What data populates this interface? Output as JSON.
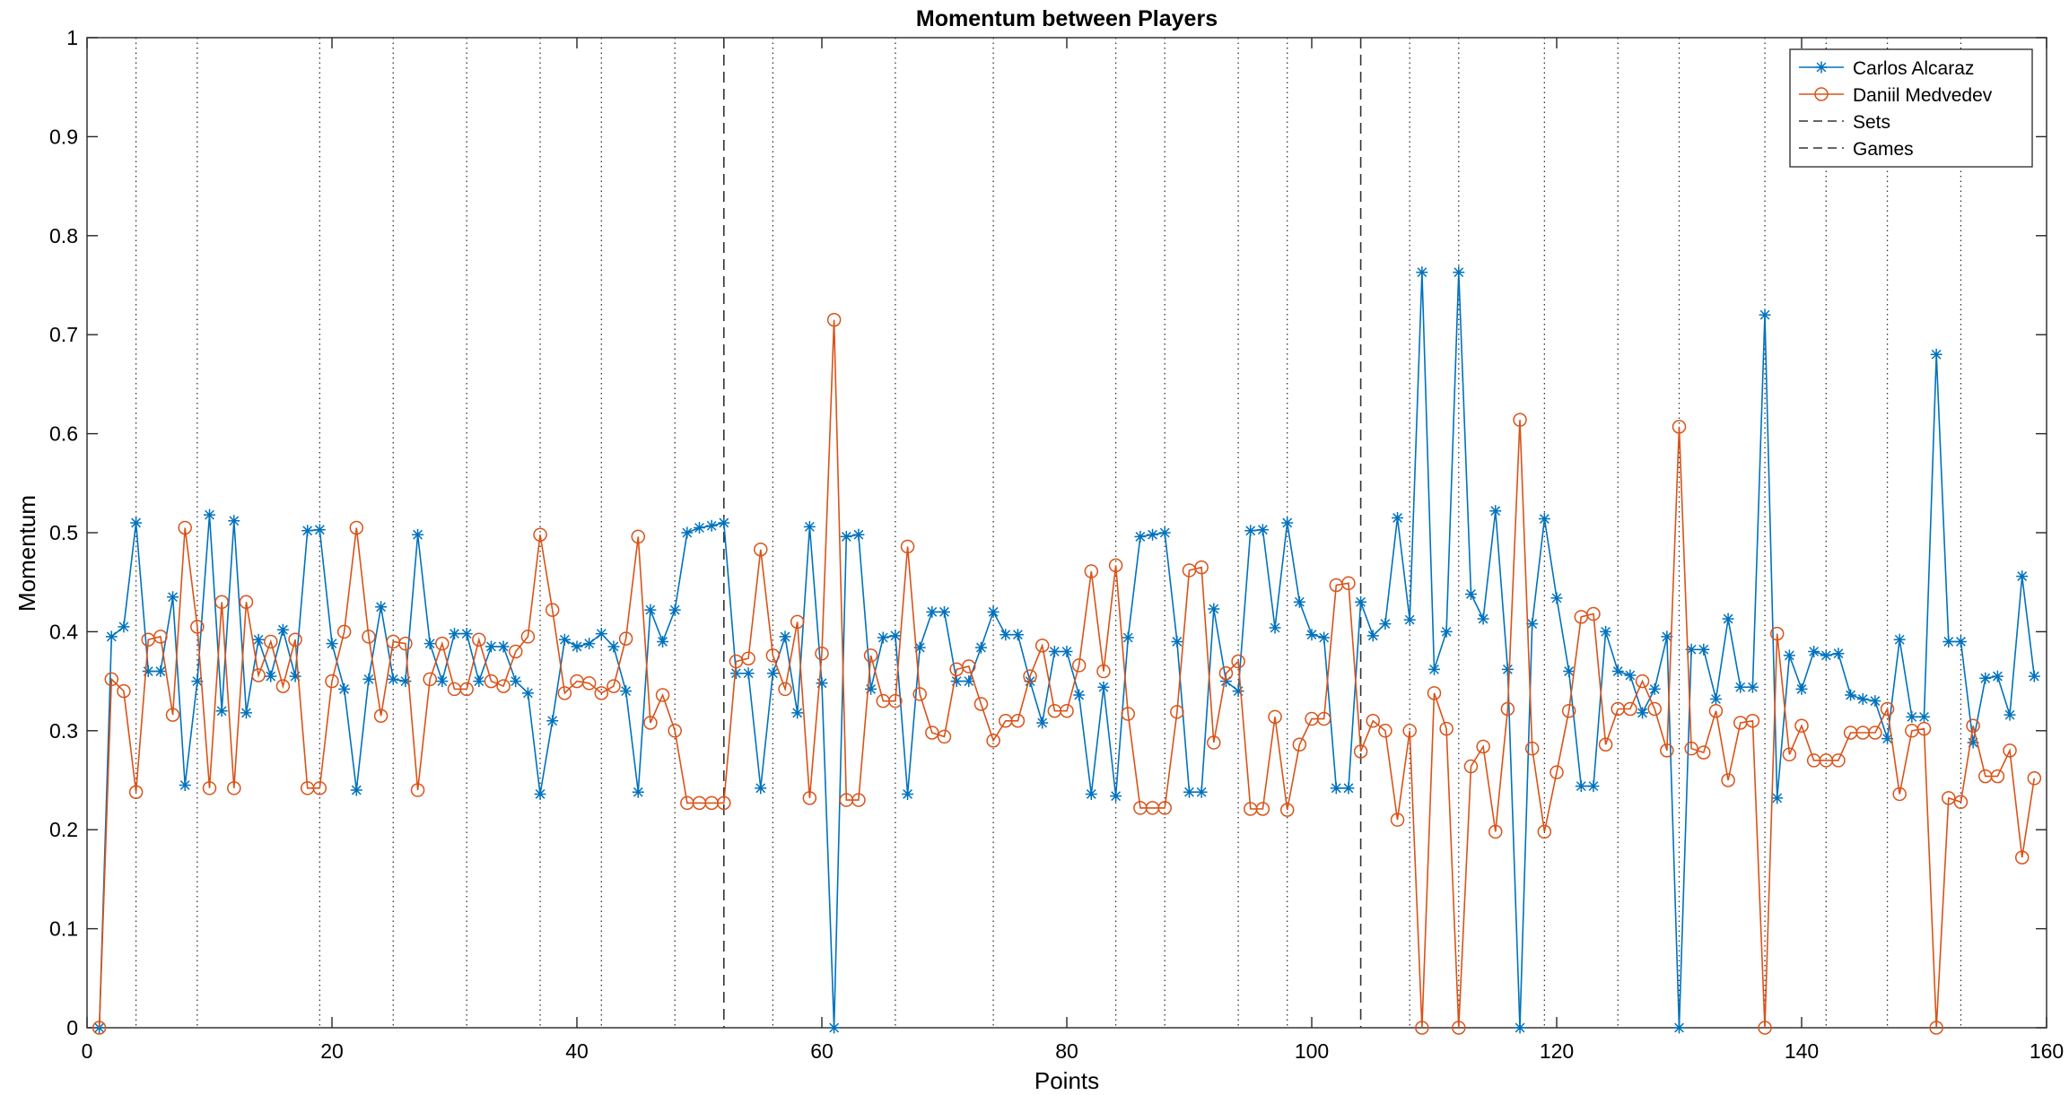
{
  "chart_data": {
    "type": "line",
    "title": "Momentum between Players",
    "xlabel": "Points",
    "ylabel": "Momentum",
    "xlim": [
      0,
      160
    ],
    "ylim": [
      0,
      1
    ],
    "xticks": [
      "0",
      "20",
      "40",
      "60",
      "80",
      "100",
      "120",
      "140",
      "160"
    ],
    "yticks": [
      "0",
      "0.1",
      "0.2",
      "0.3",
      "0.4",
      "0.5",
      "0.6",
      "0.7",
      "0.8",
      "0.9",
      "1"
    ],
    "grid": false,
    "legend_position": "top-right",
    "legend": [
      "Carlos Alcaraz",
      "Daniil Medvedev",
      "Sets",
      "Games"
    ],
    "set_boundaries": [
      52,
      104
    ],
    "game_boundaries": [
      4,
      9,
      19,
      25,
      31,
      37,
      42,
      48,
      56,
      66,
      74,
      84,
      88,
      94,
      98,
      108,
      112,
      119,
      125,
      130,
      137,
      142,
      147,
      153
    ],
    "x": [
      1,
      2,
      3,
      4,
      5,
      6,
      7,
      8,
      9,
      10,
      11,
      12,
      13,
      14,
      15,
      16,
      17,
      18,
      19,
      20,
      21,
      22,
      23,
      24,
      25,
      26,
      27,
      28,
      29,
      30,
      31,
      32,
      33,
      34,
      35,
      36,
      37,
      38,
      39,
      40,
      41,
      42,
      43,
      44,
      45,
      46,
      47,
      48,
      49,
      50,
      51,
      52,
      53,
      54,
      55,
      56,
      57,
      58,
      59,
      60,
      61,
      62,
      63,
      64,
      65,
      66,
      67,
      68,
      69,
      70,
      71,
      72,
      73,
      74,
      75,
      76,
      77,
      78,
      79,
      80,
      81,
      82,
      83,
      84,
      85,
      86,
      87,
      88,
      89,
      90,
      91,
      92,
      93,
      94,
      95,
      96,
      97,
      98,
      99,
      100,
      101,
      102,
      103,
      104,
      105,
      106,
      107,
      108,
      109,
      110,
      111,
      112,
      113,
      114,
      115,
      116,
      117,
      118,
      119,
      120,
      121,
      122,
      123,
      124,
      125,
      126,
      127,
      128,
      129,
      130,
      131,
      132,
      133,
      134,
      135,
      136,
      137,
      138,
      139,
      140,
      141,
      142,
      143,
      144,
      145,
      146,
      147,
      148,
      149,
      150,
      151,
      152,
      153,
      154,
      155,
      156,
      157,
      158,
      159
    ],
    "series": [
      {
        "name": "Carlos Alcaraz",
        "color": "#0072BD",
        "marker": "asterisk",
        "values": [
          0.0,
          0.395,
          0.405,
          0.51,
          0.36,
          0.36,
          0.435,
          0.245,
          0.35,
          0.518,
          0.32,
          0.512,
          0.318,
          0.392,
          0.355,
          0.402,
          0.355,
          0.502,
          0.503,
          0.388,
          0.342,
          0.24,
          0.352,
          0.425,
          0.352,
          0.35,
          0.498,
          0.388,
          0.35,
          0.398,
          0.398,
          0.35,
          0.385,
          0.385,
          0.35,
          0.338,
          0.236,
          0.31,
          0.392,
          0.385,
          0.388,
          0.398,
          0.385,
          0.34,
          0.238,
          0.422,
          0.39,
          0.422,
          0.5,
          0.505,
          0.507,
          0.51,
          0.358,
          0.358,
          0.242,
          0.358,
          0.395,
          0.318,
          0.506,
          0.348,
          0.0,
          0.496,
          0.498,
          0.342,
          0.394,
          0.396,
          0.236,
          0.384,
          0.42,
          0.42,
          0.35,
          0.35,
          0.384,
          0.42,
          0.397,
          0.397,
          0.35,
          0.308,
          0.38,
          0.38,
          0.336,
          0.236,
          0.344,
          0.234,
          0.394,
          0.496,
          0.498,
          0.5,
          0.39,
          0.238,
          0.238,
          0.423,
          0.35,
          0.34,
          0.502,
          0.503,
          0.404,
          0.51,
          0.43,
          0.397,
          0.394,
          0.242,
          0.242,
          0.43,
          0.396,
          0.408,
          0.515,
          0.412,
          0.763,
          0.362,
          0.4,
          0.763,
          0.438,
          0.413,
          0.522,
          0.362,
          0.0,
          0.408,
          0.514,
          0.434,
          0.36,
          0.244,
          0.244,
          0.4,
          0.36,
          0.356,
          0.318,
          0.342,
          0.395,
          0.0,
          0.382,
          0.382,
          0.332,
          0.413,
          0.344,
          0.344,
          0.72,
          0.232,
          0.376,
          0.342,
          0.38,
          0.376,
          0.378,
          0.336,
          0.332,
          0.33,
          0.292,
          0.392,
          0.314,
          0.314,
          0.68,
          0.39,
          0.39,
          0.288,
          0.353,
          0.355,
          0.316,
          0.456,
          0.355
        ]
      },
      {
        "name": "Daniil Medvedev",
        "color": "#D95319",
        "marker": "circle",
        "values": [
          0.0,
          0.352,
          0.34,
          0.238,
          0.392,
          0.395,
          0.316,
          0.505,
          0.405,
          0.242,
          0.43,
          0.242,
          0.43,
          0.356,
          0.39,
          0.345,
          0.392,
          0.242,
          0.242,
          0.35,
          0.4,
          0.505,
          0.395,
          0.315,
          0.39,
          0.388,
          0.24,
          0.352,
          0.388,
          0.342,
          0.342,
          0.392,
          0.35,
          0.345,
          0.38,
          0.395,
          0.498,
          0.422,
          0.338,
          0.35,
          0.348,
          0.338,
          0.345,
          0.393,
          0.496,
          0.308,
          0.336,
          0.3,
          0.227,
          0.227,
          0.227,
          0.227,
          0.37,
          0.373,
          0.483,
          0.376,
          0.342,
          0.41,
          0.232,
          0.378,
          0.715,
          0.23,
          0.23,
          0.376,
          0.33,
          0.33,
          0.486,
          0.337,
          0.298,
          0.294,
          0.362,
          0.365,
          0.327,
          0.29,
          0.31,
          0.31,
          0.355,
          0.386,
          0.32,
          0.32,
          0.366,
          0.461,
          0.36,
          0.467,
          0.317,
          0.222,
          0.222,
          0.222,
          0.319,
          0.462,
          0.465,
          0.288,
          0.358,
          0.37,
          0.221,
          0.221,
          0.314,
          0.22,
          0.286,
          0.312,
          0.312,
          0.447,
          0.449,
          0.279,
          0.31,
          0.3,
          0.21,
          0.3,
          0.0,
          0.338,
          0.302,
          0.0,
          0.264,
          0.284,
          0.198,
          0.322,
          0.614,
          0.282,
          0.198,
          0.258,
          0.32,
          0.415,
          0.418,
          0.286,
          0.322,
          0.322,
          0.35,
          0.322,
          0.28,
          0.607,
          0.282,
          0.278,
          0.32,
          0.25,
          0.308,
          0.31,
          0.0,
          0.398,
          0.276,
          0.305,
          0.27,
          0.27,
          0.27,
          0.298,
          0.298,
          0.298,
          0.322,
          0.236,
          0.3,
          0.302,
          0.0,
          0.232,
          0.228,
          0.305,
          0.254,
          0.254,
          0.28,
          0.172,
          0.252
        ]
      }
    ]
  }
}
